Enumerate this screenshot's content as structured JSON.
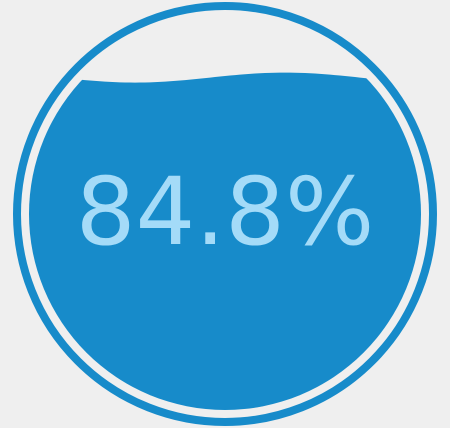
{
  "chart_data": {
    "type": "gauge",
    "values": [
      84.8
    ],
    "value_labels": [
      "84.8%"
    ],
    "ylim": [
      0,
      100
    ],
    "color": "#178bca",
    "text_color": "#a4dbf8"
  }
}
